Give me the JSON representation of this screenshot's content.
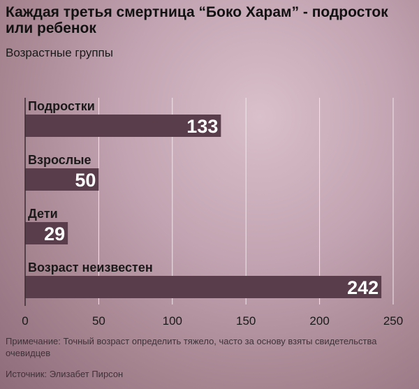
{
  "title": "Каждая третья смертница “Боко Харам” - подросток или ребенок",
  "subtitle": "Возрастные группы",
  "note": "Примечание: Точный возраст определить тяжело, часто за основу взяты свидетельства очевидцев",
  "source": "Источник: Элизабет Пирсон",
  "colors": {
    "bar": "#5a3d4b",
    "bar_label": "#ffffff",
    "grid": "#f2e6ec",
    "axis": "#3a2b32",
    "text": "#1a1a1a"
  },
  "chart_data": {
    "type": "bar",
    "orientation": "horizontal",
    "categories": [
      "Подростки",
      "Взрослые",
      "Дети",
      "Возраст неизвестен"
    ],
    "values": [
      133,
      50,
      29,
      242
    ],
    "xlim": [
      0,
      250
    ],
    "xticks": [
      0,
      50,
      100,
      150,
      200,
      250
    ],
    "grid": true,
    "title": "Каждая третья смертница “Боко Харам” - подросток или ребенок",
    "subtitle": "Возрастные группы"
  }
}
